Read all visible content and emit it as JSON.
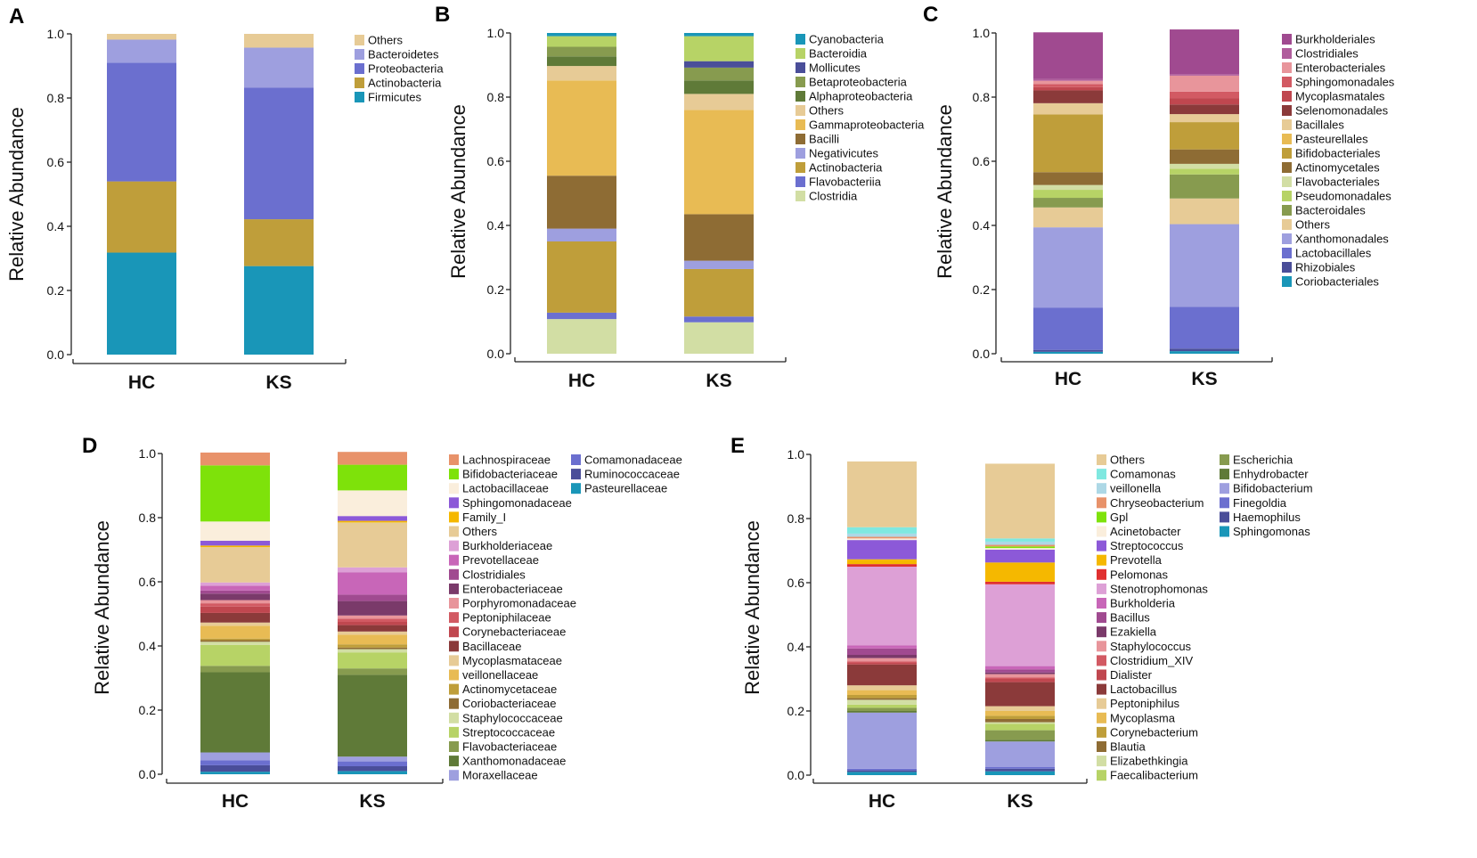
{
  "chart_data": [
    {
      "panel": "A",
      "type": "bar",
      "stacked": true,
      "categories": [
        "HC",
        "KS"
      ],
      "ylabel": "Relative Abundance",
      "ylim": [
        0,
        1
      ],
      "yticks": [
        "0.0",
        "0.2",
        "0.4",
        "0.6",
        "0.8",
        "1.0"
      ],
      "series": [
        {
          "name": "Firmicutes",
          "color": "#1996b8",
          "values": [
            0.318,
            0.276
          ]
        },
        {
          "name": "Actinobacteria",
          "color": "#bf9e3a",
          "values": [
            0.222,
            0.146
          ]
        },
        {
          "name": "Proteobacteria",
          "color": "#6b6fcf",
          "values": [
            0.37,
            0.41
          ]
        },
        {
          "name": "Bacteroidetes",
          "color": "#9e9fdf",
          "values": [
            0.072,
            0.125
          ]
        },
        {
          "name": "Others",
          "color": "#e7cb96",
          "values": [
            0.018,
            0.043
          ]
        }
      ],
      "legend": [
        "Others",
        "Bacteroidetes",
        "Proteobacteria",
        "Actinobacteria",
        "Firmicutes"
      ]
    },
    {
      "panel": "B",
      "type": "bar",
      "stacked": true,
      "categories": [
        "HC",
        "KS"
      ],
      "ylabel": "Relative Abundance",
      "ylim": [
        0,
        1
      ],
      "yticks": [
        "0.0",
        "0.2",
        "0.4",
        "0.6",
        "0.8",
        "1.0"
      ],
      "series": [
        {
          "name": "Clostridia",
          "color": "#d2dea4",
          "values": [
            0.108,
            0.098
          ]
        },
        {
          "name": "Flavobacteriia",
          "color": "#6b6fcf",
          "values": [
            0.02,
            0.018
          ]
        },
        {
          "name": "Actinobacteria",
          "color": "#bf9e3a",
          "values": [
            0.222,
            0.148
          ]
        },
        {
          "name": "Negativicutes",
          "color": "#9e9fdf",
          "values": [
            0.04,
            0.026
          ]
        },
        {
          "name": "Bacilli",
          "color": "#8e6c34",
          "values": [
            0.165,
            0.145
          ]
        },
        {
          "name": "Gammaproteobacteria",
          "color": "#e8bb54",
          "values": [
            0.297,
            0.325
          ]
        },
        {
          "name": "Others",
          "color": "#e7cb96",
          "values": [
            0.045,
            0.05
          ]
        },
        {
          "name": "Alphaproteobacteria",
          "color": "#5f7a38",
          "values": [
            0.03,
            0.042
          ]
        },
        {
          "name": "Betaproteobacteria",
          "color": "#879b4f",
          "values": [
            0.03,
            0.04
          ]
        },
        {
          "name": "Mollicutes",
          "color": "#4a4e99",
          "values": [
            0,
            0.02
          ]
        },
        {
          "name": "Bacteroidia",
          "color": "#b7d366",
          "values": [
            0.033,
            0.078
          ]
        },
        {
          "name": "Cyanobacteria",
          "color": "#1996b8",
          "values": [
            0.01,
            0.01
          ]
        }
      ],
      "legend": [
        "Cyanobacteria",
        "Bacteroidia",
        "Mollicutes",
        "Betaproteobacteria",
        "Alphaproteobacteria",
        "Others",
        "Gammaproteobacteria",
        "Bacilli",
        "Negativicutes",
        "Actinobacteria",
        "Flavobacteriia",
        "Clostridia"
      ]
    },
    {
      "panel": "C",
      "type": "bar",
      "stacked": true,
      "categories": [
        "HC",
        "KS"
      ],
      "ylabel": "Relative Abundance",
      "ylim": [
        0,
        1
      ],
      "yticks": [
        "0.0",
        "0.2",
        "0.4",
        "0.6",
        "0.8",
        "1.0"
      ],
      "series": [
        {
          "name": "Coriobacteriales",
          "color": "#1996b8",
          "values": [
            0.006,
            0.008
          ]
        },
        {
          "name": "Rhizobiales",
          "color": "#4a4e99",
          "values": [
            0.006,
            0.008
          ]
        },
        {
          "name": "Lactobacillales",
          "color": "#6b6fcf",
          "values": [
            0.132,
            0.13
          ]
        },
        {
          "name": "Xanthomonadales",
          "color": "#9e9fdf",
          "values": [
            0.25,
            0.258
          ]
        },
        {
          "name": "Others",
          "color": "#e7cb96",
          "values": [
            0.062,
            0.08
          ]
        },
        {
          "name": "Bacteroidales",
          "color": "#879b4f",
          "values": [
            0.03,
            0.075
          ]
        },
        {
          "name": "Pseudomonadales",
          "color": "#b7d366",
          "values": [
            0.025,
            0.018
          ]
        },
        {
          "name": "Flavobacteriales",
          "color": "#d2dea4",
          "values": [
            0.015,
            0.015
          ]
        },
        {
          "name": "Actinomycetales",
          "color": "#8e6c34",
          "values": [
            0.04,
            0.045
          ]
        },
        {
          "name": "Bifidobacteriales",
          "color": "#bf9e3a",
          "values": [
            0.18,
            0.085
          ]
        },
        {
          "name": "Pasteurellales",
          "color": "#e8bb54",
          "values": [
            0,
            0
          ]
        },
        {
          "name": "Bacillales",
          "color": "#e7cb96",
          "values": [
            0.035,
            0.025
          ]
        },
        {
          "name": "Selenomonadales",
          "color": "#8b3a3a",
          "values": [
            0.04,
            0.03
          ]
        },
        {
          "name": "Mycoplasmatales",
          "color": "#c0474f",
          "values": [
            0.01,
            0.02
          ]
        },
        {
          "name": "Sphingomonadales",
          "color": "#d25a63",
          "values": [
            0.01,
            0.02
          ]
        },
        {
          "name": "Enterobacteriales",
          "color": "#e8959b",
          "values": [
            0.01,
            0.05
          ]
        },
        {
          "name": "Clostridiales",
          "color": "#b05d9c",
          "values": [
            0.005,
            0.005
          ]
        },
        {
          "name": "Burkholderiales",
          "color": "#a04a90",
          "values": [
            0.146,
            0.139
          ]
        }
      ],
      "legend": [
        "Burkholderiales",
        "Clostridiales",
        "Enterobacteriales",
        "Sphingomonadales",
        "Mycoplasmatales",
        "Selenomonadales",
        "Bacillales",
        "Pasteurellales",
        "Bifidobacteriales",
        "Actinomycetales",
        "Flavobacteriales",
        "Pseudomonadales",
        "Bacteroidales",
        "Others",
        "Xanthomonadales",
        "Lactobacillales",
        "Rhizobiales",
        "Coriobacteriales"
      ]
    },
    {
      "panel": "D",
      "type": "bar",
      "stacked": true,
      "categories": [
        "HC",
        "KS"
      ],
      "ylabel": "Relative Abundance",
      "ylim": [
        0,
        1
      ],
      "yticks": [
        "0.0",
        "0.2",
        "0.4",
        "0.6",
        "0.8",
        "1.0"
      ],
      "series": [
        {
          "name": "Pasteurellaceae",
          "color": "#1996b8",
          "values": [
            0.008,
            0.01
          ]
        },
        {
          "name": "Ruminococcaceae",
          "color": "#4a4e99",
          "values": [
            0.02,
            0.015
          ]
        },
        {
          "name": "Comamonadaceae",
          "color": "#6b6fcf",
          "values": [
            0.015,
            0.015
          ]
        },
        {
          "name": "Moraxellaceae",
          "color": "#9e9fdf",
          "values": [
            0.025,
            0.015
          ]
        },
        {
          "name": "Xanthomonadaceae",
          "color": "#5f7a38",
          "values": [
            0.25,
            0.255
          ]
        },
        {
          "name": "Flavobacteriaceae",
          "color": "#879b4f",
          "values": [
            0.02,
            0.02
          ]
        },
        {
          "name": "Streptococcaceae",
          "color": "#b7d366",
          "values": [
            0.065,
            0.05
          ]
        },
        {
          "name": "Staphylococcaceae",
          "color": "#d2dea4",
          "values": [
            0.01,
            0.01
          ]
        },
        {
          "name": "Coriobacteriaceae",
          "color": "#8e6c34",
          "values": [
            0.005,
            0.005
          ]
        },
        {
          "name": "Actinomycetaceae",
          "color": "#bf9e3a",
          "values": [
            0.005,
            0.01
          ]
        },
        {
          "name": "veillonellaceae",
          "color": "#e8bb54",
          "values": [
            0.04,
            0.03
          ]
        },
        {
          "name": "Mycoplasmataceae",
          "color": "#e7cb96",
          "values": [
            0.01,
            0.01
          ]
        },
        {
          "name": "Bacillaceae",
          "color": "#8b3a3a",
          "values": [
            0.03,
            0.02
          ]
        },
        {
          "name": "Corynebacteriaceae",
          "color": "#c0474f",
          "values": [
            0.02,
            0.01
          ]
        },
        {
          "name": "Peptoniphilaceae",
          "color": "#d25a63",
          "values": [
            0.01,
            0.01
          ]
        },
        {
          "name": "Porphyromonadaceae",
          "color": "#e8959b",
          "values": [
            0.01,
            0.01
          ]
        },
        {
          "name": "Enterobacteriaceae",
          "color": "#7a3a6a",
          "values": [
            0.02,
            0.045
          ]
        },
        {
          "name": "Clostridiales",
          "color": "#a04a90",
          "values": [
            0.01,
            0.02
          ]
        },
        {
          "name": "Prevotellaceae",
          "color": "#c866b8",
          "values": [
            0.015,
            0.07
          ]
        },
        {
          "name": "Burkholderiaceae",
          "color": "#dda0d6",
          "values": [
            0.01,
            0.015
          ]
        },
        {
          "name": "Others",
          "color": "#e7cb96",
          "values": [
            0.11,
            0.14
          ]
        },
        {
          "name": "Family_I",
          "color": "#f5b800",
          "values": [
            0.005,
            0.005
          ]
        },
        {
          "name": "Sphingomonadaceae",
          "color": "#8c59d8",
          "values": [
            0.015,
            0.015
          ]
        },
        {
          "name": "Lactobacillaceae",
          "color": "#faeedc",
          "values": [
            0.06,
            0.08
          ]
        },
        {
          "name": "Bifidobacteriaceae",
          "color": "#7ee20a",
          "values": [
            0.175,
            0.08
          ]
        },
        {
          "name": "Lachnospiraceae",
          "color": "#e8926a",
          "values": [
            0.04,
            0.04
          ]
        }
      ],
      "legend": [
        "Lachnospiraceae",
        "Bifidobacteriaceae",
        "Lactobacillaceae",
        "Sphingomonadaceae",
        "Family_I",
        "Others",
        "Burkholderiaceae",
        "Prevotellaceae",
        "Clostridiales",
        "Enterobacteriaceae",
        "Porphyromonadaceae",
        "Peptoniphilaceae",
        "Corynebacteriaceae",
        "Bacillaceae",
        "Mycoplasmataceae",
        "veillonellaceae",
        "Actinomycetaceae",
        "Coriobacteriaceae",
        "Staphylococcaceae",
        "Streptococcaceae",
        "Flavobacteriaceae",
        "Xanthomonadaceae",
        "Moraxellaceae",
        "Comamonadaceae",
        "Ruminococcaceae",
        "Pasteurellaceae"
      ]
    },
    {
      "panel": "E",
      "type": "bar",
      "stacked": true,
      "categories": [
        "HC",
        "KS"
      ],
      "ylabel": "Relative Abundance",
      "ylim": [
        0,
        1
      ],
      "yticks": [
        "0.0",
        "0.2",
        "0.4",
        "0.6",
        "0.8",
        "1.0"
      ],
      "series": [
        {
          "name": "Sphingomonas",
          "color": "#1996b8",
          "values": [
            0.01,
            0.012
          ]
        },
        {
          "name": "Haemophilus",
          "color": "#4a4e99",
          "values": [
            0.005,
            0.008
          ]
        },
        {
          "name": "Finegoldia",
          "color": "#6b6fcf",
          "values": [
            0.005,
            0.005
          ]
        },
        {
          "name": "Bifidobacterium",
          "color": "#9e9fdf",
          "values": [
            0.175,
            0.08
          ]
        },
        {
          "name": "Enhydrobacter",
          "color": "#5f7a38",
          "values": [
            0.005,
            0.005
          ]
        },
        {
          "name": "Escherichia",
          "color": "#879b4f",
          "values": [
            0.01,
            0.03
          ]
        },
        {
          "name": "Faecalibacterium",
          "color": "#b7d366",
          "values": [
            0.01,
            0.02
          ]
        },
        {
          "name": "Elizabethkingia",
          "color": "#d2dea4",
          "values": [
            0.015,
            0.005
          ]
        },
        {
          "name": "Blautia",
          "color": "#8e6c34",
          "values": [
            0.005,
            0.01
          ]
        },
        {
          "name": "Corynebacterium",
          "color": "#bf9e3a",
          "values": [
            0.01,
            0.01
          ]
        },
        {
          "name": "Mycoplasma",
          "color": "#e8bb54",
          "values": [
            0.015,
            0.015
          ]
        },
        {
          "name": "Peptoniphilus",
          "color": "#e7cb96",
          "values": [
            0.015,
            0.015
          ]
        },
        {
          "name": "Lactobacillus",
          "color": "#8b3a3a",
          "values": [
            0.065,
            0.075
          ]
        },
        {
          "name": "Dialister",
          "color": "#c0474f",
          "values": [
            0.005,
            0.01
          ]
        },
        {
          "name": "Clostridium_XIV",
          "color": "#d25a63",
          "values": [
            0.005,
            0.005
          ]
        },
        {
          "name": "Staphylococcus",
          "color": "#e8959b",
          "values": [
            0.01,
            0.01
          ]
        },
        {
          "name": "Ezakiella",
          "color": "#7a3a6a",
          "values": [
            0.01,
            0.005
          ]
        },
        {
          "name": "Bacillus",
          "color": "#a04a90",
          "values": [
            0.02,
            0.01
          ]
        },
        {
          "name": "Burkholderia",
          "color": "#c866b8",
          "values": [
            0.01,
            0.01
          ]
        },
        {
          "name": "Stenotrophomonas",
          "color": "#dda0d6",
          "values": [
            0.245,
            0.255
          ]
        },
        {
          "name": "Pelomonas",
          "color": "#e03030",
          "values": [
            0.008,
            0.008
          ]
        },
        {
          "name": "Prevotella",
          "color": "#f5b800",
          "values": [
            0.015,
            0.06
          ]
        },
        {
          "name": "Streptococcus",
          "color": "#8c59d8",
          "values": [
            0.06,
            0.04
          ]
        },
        {
          "name": "Acinetobacter",
          "color": "#faeedc",
          "values": [
            0.005,
            0.005
          ]
        },
        {
          "name": "Gpl",
          "color": "#7ee20a",
          "values": [
            0,
            0.005
          ]
        },
        {
          "name": "Chryseobacterium",
          "color": "#e8926a",
          "values": [
            0.005,
            0.005
          ]
        },
        {
          "name": "veillonella",
          "color": "#add8e6",
          "values": [
            0.01,
            0.01
          ]
        },
        {
          "name": "Comamonas",
          "color": "#7fe8e0",
          "values": [
            0.02,
            0.01
          ]
        },
        {
          "name": "Others",
          "color": "#e7cb96",
          "values": [
            0.205,
            0.233
          ]
        }
      ],
      "legend": [
        "Others",
        "Comamonas",
        "veillonella",
        "Chryseobacterium",
        "Gpl",
        "Acinetobacter",
        "Streptococcus",
        "Prevotella",
        "Pelomonas",
        "Stenotrophomonas",
        "Burkholderia",
        "Bacillus",
        "Ezakiella",
        "Staphylococcus",
        "Clostridium_XIV",
        "Dialister",
        "Lactobacillus",
        "Peptoniphilus",
        "Mycoplasma",
        "Corynebacterium",
        "Blautia",
        "Elizabethkingia",
        "Faecalibacterium",
        "Escherichia",
        "Enhydrobacter",
        "Bifidobacterium",
        "Finegoldia",
        "Haemophilus",
        "Sphingomonas"
      ]
    }
  ]
}
